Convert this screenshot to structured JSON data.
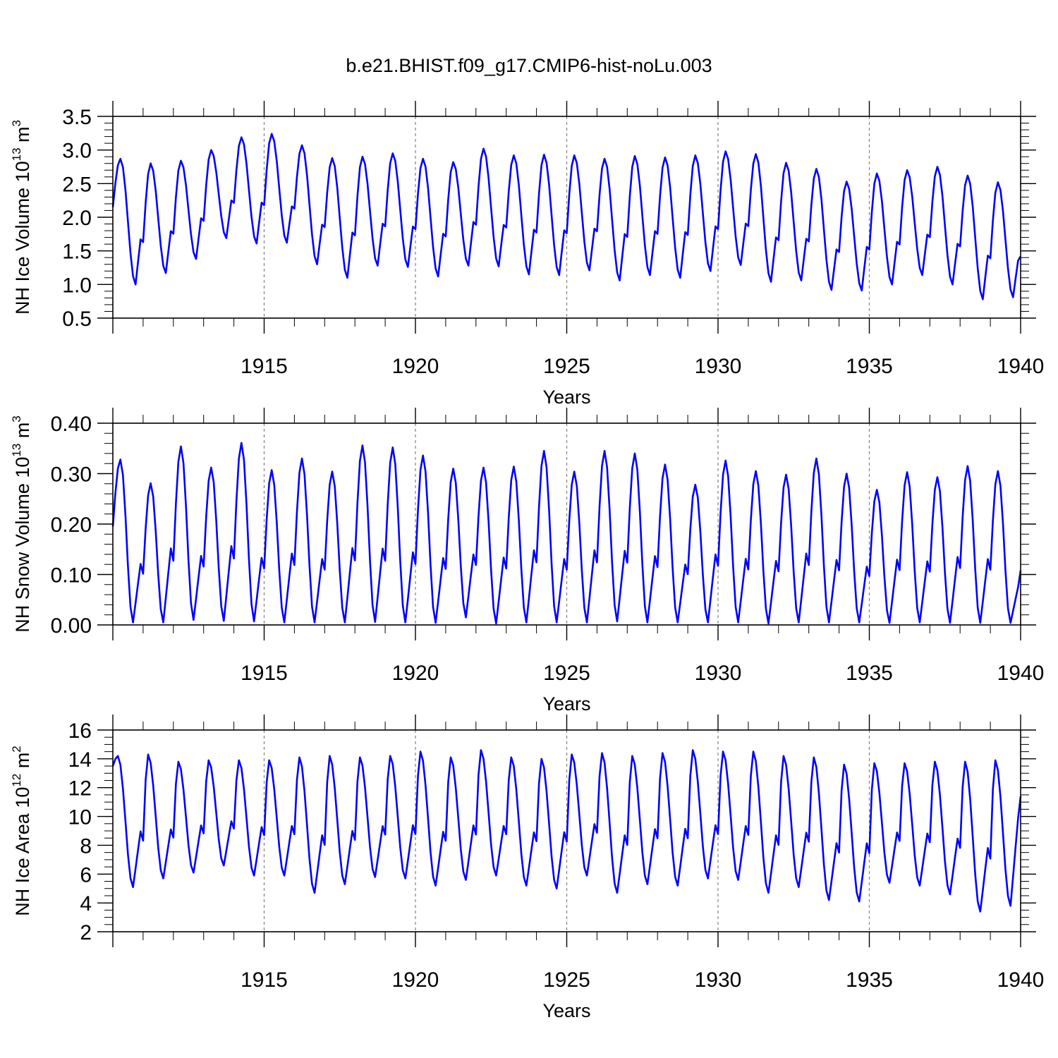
{
  "title": "b.e21.BHIST.f09_g17.CMIP6-hist-noLu.003",
  "line_color": "#0000ff",
  "grid_color": "#808080",
  "chart_data": [
    {
      "type": "line",
      "ylabel": "NH Ice Volume 10",
      "ylabel_exp": "13",
      "ylabel_unit": "m",
      "ylabel_unit_exp": "3",
      "xlabel": "Years",
      "xlim": [
        1910,
        1940
      ],
      "ylim": [
        0.5,
        3.5
      ],
      "yticks": [
        0.5,
        1.0,
        1.5,
        2.0,
        2.5,
        3.0,
        3.5
      ],
      "ytick_labels": [
        "0.5",
        "1.0",
        "1.5",
        "2.0",
        "2.5",
        "3.0",
        "3.5"
      ],
      "y_minor_step": 0.1,
      "xticks": [
        1915,
        1920,
        1925,
        1930,
        1935,
        1940
      ],
      "xtick_labels": [
        "1915",
        "1920",
        "1925",
        "1930",
        "1935",
        "1940"
      ],
      "gridlines_x": [
        1915,
        1920,
        1925,
        1930,
        1935
      ],
      "series": [
        {
          "name": "NH Ice Volume",
          "x_start": 1910.0,
          "x_step": 0.0833333,
          "annual_max": [
            2.87,
            2.8,
            2.84,
            3.0,
            3.19,
            3.24,
            3.07,
            2.88,
            2.9,
            2.95,
            2.87,
            2.82,
            3.02,
            2.92,
            2.93,
            2.92,
            2.87,
            2.91,
            2.89,
            2.92,
            2.98,
            2.94,
            2.81,
            2.72,
            2.53,
            2.65,
            2.7,
            2.75,
            2.62,
            2.52
          ],
          "annual_min": [
            1.0,
            1.17,
            1.38,
            1.69,
            1.61,
            1.62,
            1.3,
            1.1,
            1.28,
            1.26,
            1.12,
            1.28,
            1.27,
            1.15,
            1.14,
            1.21,
            1.06,
            1.14,
            1.1,
            1.2,
            1.29,
            1.04,
            1.06,
            0.92,
            0.91,
            1.0,
            1.14,
            1.0,
            0.78,
            0.81
          ],
          "start_value": 2.15,
          "end_value": 1.42,
          "max_month": 3,
          "min_month": 9
        }
      ]
    },
    {
      "type": "line",
      "ylabel": "NH Snow Volume 10",
      "ylabel_exp": "13",
      "ylabel_unit": "m",
      "ylabel_unit_exp": "3",
      "xlabel": "Years",
      "xlim": [
        1910,
        1940
      ],
      "ylim": [
        0.0,
        0.4
      ],
      "yticks": [
        0.0,
        0.1,
        0.2,
        0.3,
        0.4
      ],
      "ytick_labels": [
        "0.00",
        "0.10",
        "0.20",
        "0.30",
        "0.40"
      ],
      "y_minor_step": 0.02,
      "xticks": [
        1915,
        1920,
        1925,
        1930,
        1935,
        1940
      ],
      "xtick_labels": [
        "1915",
        "1920",
        "1925",
        "1930",
        "1935",
        "1940"
      ],
      "gridlines_x": [
        1915,
        1920,
        1925,
        1930,
        1935
      ],
      "series": [
        {
          "name": "NH Snow Volume",
          "x_start": 1910.0,
          "x_step": 0.0833333,
          "annual_max": [
            0.328,
            0.281,
            0.354,
            0.312,
            0.361,
            0.307,
            0.33,
            0.304,
            0.356,
            0.352,
            0.336,
            0.31,
            0.312,
            0.314,
            0.345,
            0.304,
            0.345,
            0.34,
            0.318,
            0.278,
            0.326,
            0.305,
            0.298,
            0.33,
            0.3,
            0.268,
            0.303,
            0.293,
            0.315,
            0.305
          ],
          "annual_min": [
            0.005,
            0.005,
            0.01,
            0.008,
            0.007,
            0.005,
            0.005,
            0.005,
            0.006,
            0.005,
            0.004,
            0.015,
            0.003,
            0.005,
            0.005,
            0.005,
            0.007,
            0.005,
            0.005,
            0.005,
            0.005,
            0.003,
            0.005,
            0.005,
            0.005,
            0.004,
            0.005,
            0.004,
            0.004,
            0.004
          ],
          "start_value": 0.195,
          "end_value": 0.108,
          "max_month": 3,
          "min_month": 8
        }
      ]
    },
    {
      "type": "line",
      "ylabel": "NH Ice Area 10",
      "ylabel_exp": "12",
      "ylabel_unit": "m",
      "ylabel_unit_exp": "2",
      "xlabel": "Years",
      "xlim": [
        1910,
        1940
      ],
      "ylim": [
        2,
        16
      ],
      "yticks": [
        2,
        4,
        6,
        8,
        10,
        12,
        14,
        16
      ],
      "ytick_labels": [
        "2",
        "4",
        "6",
        "8",
        "10",
        "12",
        "14",
        "16"
      ],
      "y_minor_step": 0.5,
      "xticks": [
        1915,
        1920,
        1925,
        1930,
        1935,
        1940
      ],
      "xtick_labels": [
        "1915",
        "1920",
        "1925",
        "1930",
        "1935",
        "1940"
      ],
      "gridlines_x": [
        1915,
        1920,
        1925,
        1930,
        1935
      ],
      "series": [
        {
          "name": "NH Ice Area",
          "x_start": 1910.0,
          "x_step": 0.0833333,
          "annual_max": [
            14.2,
            14.3,
            13.8,
            13.9,
            13.9,
            13.9,
            14.1,
            14.2,
            14.1,
            14.2,
            14.5,
            14.1,
            14.6,
            14.1,
            14.0,
            14.3,
            14.4,
            14.2,
            14.4,
            14.6,
            14.5,
            14.5,
            14.2,
            14.1,
            13.6,
            13.7,
            13.7,
            13.8,
            13.8,
            13.9
          ],
          "annual_min": [
            5.1,
            5.7,
            6.1,
            6.6,
            5.9,
            5.9,
            4.7,
            5.3,
            5.8,
            5.7,
            5.2,
            5.6,
            5.9,
            5.2,
            5.0,
            5.9,
            4.7,
            5.3,
            5.2,
            5.7,
            5.6,
            4.7,
            5.1,
            4.2,
            4.1,
            5.4,
            5.2,
            4.6,
            3.4,
            3.8
          ],
          "start_value": 13.5,
          "end_value": 11.4,
          "max_month": 2,
          "min_month": 8
        }
      ]
    }
  ]
}
